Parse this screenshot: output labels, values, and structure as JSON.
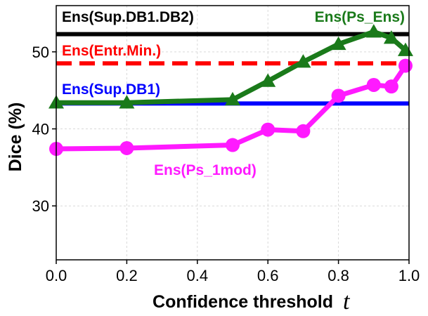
{
  "chart_data": {
    "type": "line",
    "xlabel": "Confidence threshold",
    "xlabel_var": "t",
    "ylabel": "Dice (%)",
    "xlim": [
      0.0,
      1.0
    ],
    "ylim": [
      23,
      56
    ],
    "grid": true,
    "xticks": [
      0.0,
      0.2,
      0.4,
      0.6,
      0.8,
      1.0
    ],
    "xtick_labels": [
      "0.0",
      "0.2",
      "0.4",
      "0.6",
      "0.8",
      "1.0"
    ],
    "yticks": [
      30,
      40,
      50
    ],
    "ytick_labels": [
      "30",
      "40",
      "50"
    ],
    "series": [
      {
        "name": "Ens(Ps_Ens)",
        "color": "#1a7a1a",
        "marker": "triangle",
        "x": [
          0.0,
          0.2,
          0.5,
          0.6,
          0.7,
          0.8,
          0.9,
          0.95,
          0.99
        ],
        "values": [
          43.4,
          43.4,
          43.8,
          46.2,
          48.7,
          51.0,
          52.6,
          51.8,
          50.2
        ]
      },
      {
        "name": "Ens(Ps_1mod)",
        "color": "#ff1aff",
        "marker": "circle",
        "x": [
          0.0,
          0.2,
          0.5,
          0.6,
          0.7,
          0.8,
          0.9,
          0.95,
          0.99
        ],
        "values": [
          37.4,
          37.5,
          37.9,
          39.9,
          39.7,
          44.3,
          45.7,
          45.5,
          48.2
        ]
      }
    ],
    "reference_lines": [
      {
        "name": "Ens(Sup.DB1.DB2)",
        "value": 52.3,
        "color": "#000000",
        "style": "solid"
      },
      {
        "name": "Ens(Entr.Min.)",
        "value": 48.5,
        "color": "#ff0000",
        "style": "dashed"
      },
      {
        "name": "Ens(Sup.DB1)",
        "value": 43.3,
        "color": "#0000ff",
        "style": "solid"
      }
    ]
  }
}
